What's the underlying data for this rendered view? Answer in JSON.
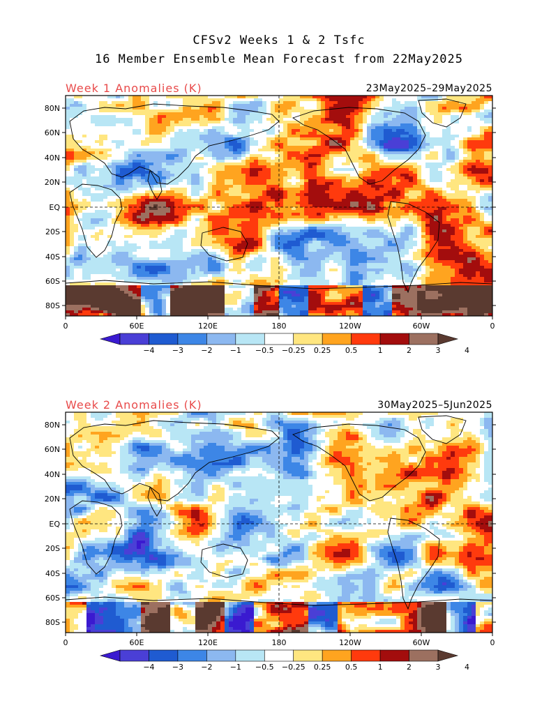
{
  "title": {
    "line1": "CFSv2 Weeks 1 & 2 Tsfc",
    "line2": "16 Member Ensemble Mean Forecast from 22May2025"
  },
  "panels": [
    {
      "label": "Week 1 Anomalies (K)",
      "dates": "23May2025–29May2025"
    },
    {
      "label": "Week 2 Anomalies (K)",
      "dates": "30May2025–5Jun2025"
    }
  ],
  "axes": {
    "lat_labels": [
      "80N",
      "60N",
      "40N",
      "20N",
      "EQ",
      "20S",
      "40S",
      "60S",
      "80S"
    ],
    "lon_labels": [
      "0",
      "60E",
      "120E",
      "180",
      "120W",
      "60W",
      "0"
    ]
  },
  "colorbar": {
    "labels": [
      "−4",
      "−3",
      "−2",
      "−1",
      "−0.5",
      "−0.25",
      "0.25",
      "0.5",
      "1",
      "2",
      "3",
      "4"
    ],
    "colors": [
      "#3a1ad0",
      "#4a3fd6",
      "#1f5bd1",
      "#3d86e6",
      "#8cb8f0",
      "#b8e6f5",
      "#ffffff",
      "#ffe680",
      "#ffa41f",
      "#ff3a0d",
      "#a30d0d",
      "#9c7060",
      "#5a3a30"
    ]
  }
}
